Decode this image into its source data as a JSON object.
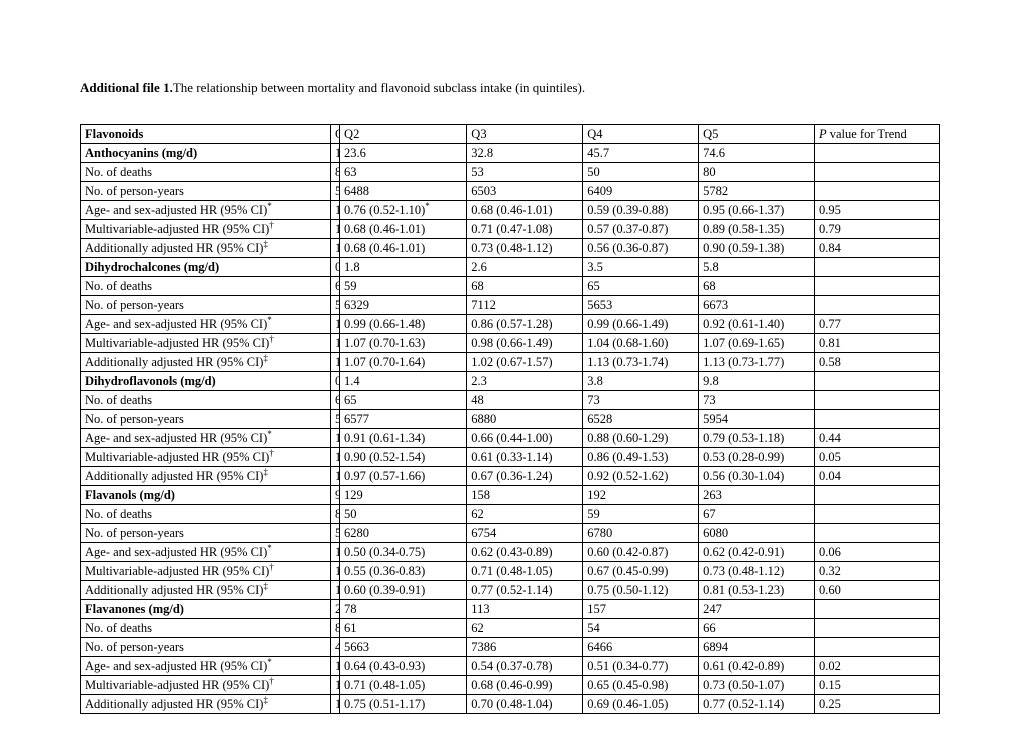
{
  "caption": {
    "lead": "Additional file 1.",
    "rest": "The relationship between mortality and flavonoid subclass intake (in quintiles)."
  },
  "header": {
    "label": "Flavonoids",
    "q1prefix": "Q",
    "q2": "Q2",
    "q3": "Q3",
    "q4": "Q4",
    "q5": "Q5",
    "p_lead_italic": "P",
    "p_rest": " value for Trend"
  },
  "labels": {
    "dose_anth": "Anthocyanins (mg/d)",
    "dose_dhc": "Dihydrochalcones (mg/d)",
    "dose_dhf": "Dihydroflavonols (mg/d)",
    "dose_flavanols": "Flavanols (mg/d)",
    "dose_flavanones": "Flavanones (mg/d)",
    "deaths": "No. of deaths",
    "py": "No. of person-years",
    "age_sex": "Age- and sex-adjusted HR (95% CI)",
    "mv": "Multivariable-adjusted HR (95% CI)",
    "add": "Additionally adjusted HR (95% CI)",
    "sup_star": "*",
    "sup_dagger": "†",
    "sup_ddagger": "‡"
  },
  "rows": {
    "anth_dose": {
      "q1": "1",
      "q2": "23.6",
      "q3": "32.8",
      "q4": "45.7",
      "q5": "74.6",
      "p": ""
    },
    "anth_deaths": {
      "q1": "8",
      "q2": "63",
      "q3": "53",
      "q4": "50",
      "q5": "80",
      "p": ""
    },
    "anth_py": {
      "q1": "5",
      "q2": "6488",
      "q3": "6503",
      "q4": "6409",
      "q5": "5782",
      "p": ""
    },
    "anth_as": {
      "q1": "1",
      "q2": "0.76 (0.52-1.10)",
      "q2sup": "*",
      "q3": "0.68 (0.46-1.01)",
      "q4": "0.59 (0.39-0.88)",
      "q5": "0.95 (0.66-1.37)",
      "p": "0.95"
    },
    "anth_mv": {
      "q1": "1",
      "q2": "0.68 (0.46-1.01)",
      "q3": "0.71 (0.47-1.08)",
      "q4": "0.57 (0.37-0.87)",
      "q5": "0.89 (0.58-1.35)",
      "p": "0.79"
    },
    "anth_add": {
      "q1": "1",
      "q2": "0.68 (0.46-1.01)",
      "q3": "0.73 (0.48-1.12)",
      "q4": "0.56 (0.36-0.87)",
      "q5": "0.90 (0.59-1.38)",
      "p": "0.84"
    },
    "dhc_dose": {
      "q1": "0",
      "q2": "1.8",
      "q3": "2.6",
      "q4": "3.5",
      "q5": "5.8",
      "p": ""
    },
    "dhc_deaths": {
      "q1": "6",
      "q2": "59",
      "q3": "68",
      "q4": "65",
      "q5": "68",
      "p": ""
    },
    "dhc_py": {
      "q1": "5",
      "q2": "6329",
      "q3": "7112",
      "q4": "5653",
      "q5": "6673",
      "p": ""
    },
    "dhc_as": {
      "q1": "1",
      "q2": "0.99 (0.66-1.48)",
      "q3": "0.86 (0.57-1.28)",
      "q4": "0.99 (0.66-1.49)",
      "q5": "0.92 (0.61-1.40)",
      "p": "0.77"
    },
    "dhc_mv": {
      "q1": "1",
      "q2": "1.07 (0.70-1.63)",
      "q3": "0.98 (0.66-1.49)",
      "q4": "1.04 (0.68-1.60)",
      "q5": "1.07 (0.69-1.65)",
      "p": "0.81"
    },
    "dhc_add": {
      "q1": "1",
      "q2": "1.07 (0.70-1.64)",
      "q3": "1.02 (0.67-1.57)",
      "q4": "1.13 (0.73-1.74)",
      "q5": "1.13 (0.73-1.77)",
      "p": "0.58"
    },
    "dhf_dose": {
      "q1": "0",
      "q2": "1.4",
      "q3": "2.3",
      "q4": "3.8",
      "q5": "9.8",
      "p": ""
    },
    "dhf_deaths": {
      "q1": "6",
      "q2": "65",
      "q3": "48",
      "q4": "73",
      "q5": "73",
      "p": ""
    },
    "dhf_py": {
      "q1": "5",
      "q2": "6577",
      "q3": "6880",
      "q4": "6528",
      "q5": "5954",
      "p": ""
    },
    "dhf_as": {
      "q1": "1",
      "q2": "0.91 (0.61-1.34)",
      "q3": "0.66 (0.44-1.00)",
      "q4": "0.88 (0.60-1.29)",
      "q5": "0.79 (0.53-1.18)",
      "p": "0.44"
    },
    "dhf_mv": {
      "q1": "1",
      "q2": "0.90 (0.52-1.54)",
      "q3": "0.61 (0.33-1.14)",
      "q4": "0.86 (0.49-1.53)",
      "q5": "0.53 (0.28-0.99)",
      "p": "0.05"
    },
    "dhf_add": {
      "q1": "1",
      "q2": "0.97 (0.57-1.66)",
      "q3": "0.67 (0.36-1.24)",
      "q4": "0.92 (0.52-1.62)",
      "q5": "0.56 (0.30-1.04)",
      "p": "0.04"
    },
    "fol_dose": {
      "q1": "9",
      "q2": "129",
      "q3": "158",
      "q4": "192",
      "q5": "263",
      "p": ""
    },
    "fol_deaths": {
      "q1": "8",
      "q2": "50",
      "q3": "62",
      "q4": "59",
      "q5": "67",
      "p": ""
    },
    "fol_py": {
      "q1": "5",
      "q2": "6280",
      "q3": "6754",
      "q4": "6780",
      "q5": "6080",
      "p": ""
    },
    "fol_as": {
      "q1": "1",
      "q2": "0.50 (0.34-0.75)",
      "q3": "0.62 (0.43-0.89)",
      "q4": "0.60 (0.42-0.87)",
      "q5": "0.62 (0.42-0.91)",
      "p": "0.06"
    },
    "fol_mv": {
      "q1": "1",
      "q2": "0.55 (0.36-0.83)",
      "q3": "0.71 (0.48-1.05)",
      "q4": "0.67 (0.45-0.99)",
      "q5": "0.73 (0.48-1.12)",
      "p": "0.32"
    },
    "fol_add": {
      "q1": "1",
      "q2": "0.60 (0.39-0.91)",
      "q3": "0.77 (0.52-1.14)",
      "q4": "0.75 (0.50-1.12)",
      "q5": "0.81 (0.53-1.23)",
      "p": "0.60"
    },
    "fon_dose": {
      "q1": "2",
      "q2": "78",
      "q3": "113",
      "q4": "157",
      "q5": "247",
      "p": ""
    },
    "fon_deaths": {
      "q1": "8",
      "q2": "61",
      "q3": "62",
      "q4": "54",
      "q5": "66",
      "p": ""
    },
    "fon_py": {
      "q1": "4",
      "q2": "5663",
      "q3": "7386",
      "q4": "6466",
      "q5": "6894",
      "p": ""
    },
    "fon_as": {
      "q1": "1",
      "q2": "0.64  (0.43-0.93)",
      "q3": "0.54 (0.37-0.78)",
      "q4": "0.51 (0.34-0.77)",
      "q5": "0.61 (0.42-0.89)",
      "p": "0.02"
    },
    "fon_mv": {
      "q1": "1",
      "q2": "0.71  (0.48-1.05)",
      "q3": "0.68 (0.46-0.99)",
      "q4": "0.65 (0.45-0.98)",
      "q5": "0.73 (0.50-1.07)",
      "p": "0.15"
    },
    "fon_add": {
      "q1": "1",
      "q2": "0.75  (0.51-1.17)",
      "q3": "0.70 (0.48-1.04)",
      "q4": "0.69 (0.46-1.05)",
      "q5": "0.77 (0.52-1.14)",
      "p": "0.25"
    }
  }
}
